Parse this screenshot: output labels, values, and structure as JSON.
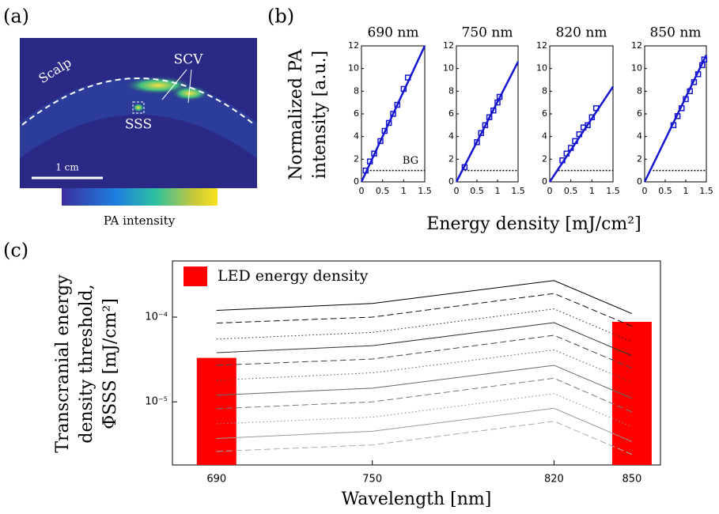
{
  "panel_labels": [
    "(a)",
    "(b)",
    "(c)"
  ],
  "image": {
    "scalp": "Scalp",
    "scv": "SCV",
    "sss": "SSS",
    "scale_bar": "1 cm",
    "colorbar_label": "PA intensity"
  },
  "panel_b": {
    "y_label": [
      "Normalized PA",
      "intensity [a.u.]"
    ],
    "x_label": "Energy density [mJ/cm²]",
    "bg_label": "BG"
  },
  "chart_data": [
    {
      "type": "scatter",
      "title": "690 nm",
      "x": [
        0.1,
        0.2,
        0.3,
        0.45,
        0.55,
        0.65,
        0.75,
        0.85,
        1.0,
        1.1
      ],
      "values": [
        1,
        1.8,
        2.5,
        3.6,
        4.5,
        5.2,
        6,
        6.8,
        8.2,
        9.2
      ],
      "color": "#1515d0",
      "fit": {
        "x": [
          0,
          1.5
        ],
        "values": [
          0,
          12
        ]
      },
      "bg": 1,
      "xlim": [
        0,
        1.5
      ],
      "ylim": [
        0,
        12
      ],
      "xticks": [
        0,
        0.5,
        1,
        1.5
      ],
      "yticks": [
        0,
        2,
        4,
        6,
        8,
        10,
        12
      ]
    },
    {
      "type": "scatter",
      "title": "750 nm",
      "x": [
        0.2,
        0.5,
        0.6,
        0.7,
        0.8,
        0.9,
        1.0,
        1.05
      ],
      "values": [
        1.3,
        3.5,
        4.3,
        5,
        5.7,
        6.3,
        7,
        7.5
      ],
      "color": "#1515d0",
      "fit": {
        "x": [
          0,
          1.5
        ],
        "values": [
          0,
          10.6
        ]
      },
      "bg": 1,
      "xlim": [
        0,
        1.5
      ],
      "ylim": [
        0,
        12
      ],
      "xticks": [
        0,
        0.5,
        1,
        1.5
      ],
      "yticks": [
        0,
        2,
        4,
        6,
        8,
        10,
        12
      ]
    },
    {
      "type": "scatter",
      "title": "820 nm",
      "x": [
        0.3,
        0.4,
        0.5,
        0.6,
        0.7,
        0.8,
        0.9,
        1.0,
        1.1
      ],
      "values": [
        1.9,
        2.5,
        3,
        3.6,
        4.2,
        4.8,
        5,
        5.7,
        6.5
      ],
      "color": "#1515d0",
      "fit": {
        "x": [
          0,
          1.5
        ],
        "values": [
          0,
          8.4
        ]
      },
      "bg": 1,
      "xlim": [
        0,
        1.5
      ],
      "ylim": [
        0,
        12
      ],
      "xticks": [
        0,
        0.5,
        1,
        1.5
      ],
      "yticks": [
        0,
        2,
        4,
        6,
        8,
        10,
        12
      ]
    },
    {
      "type": "scatter",
      "title": "850 nm",
      "x": [
        0.7,
        0.8,
        0.9,
        1.0,
        1.1,
        1.2,
        1.3,
        1.4,
        1.45
      ],
      "values": [
        5,
        5.8,
        6.5,
        7.3,
        8,
        8.8,
        9.5,
        10.3,
        10.8
      ],
      "color": "#1515d0",
      "fit": {
        "x": [
          0,
          1.5
        ],
        "values": [
          0,
          11.2
        ]
      },
      "bg": 1,
      "xlim": [
        0,
        1.5
      ],
      "ylim": [
        0,
        12
      ],
      "xticks": [
        0,
        0.5,
        1,
        1.5
      ],
      "yticks": [
        0,
        2,
        4,
        6,
        8,
        10,
        12
      ]
    },
    {
      "type": "combo",
      "y_label": [
        "Transcranial energy",
        "density threshold,",
        "Φ̄SSS [mJ/cm²]"
      ],
      "x_label": "Wavelength [nm]",
      "yscale": "log",
      "legend": "upper left",
      "x": [
        690,
        750,
        820,
        850
      ],
      "xlim": [
        673,
        861
      ],
      "xticks": [
        690,
        750,
        820,
        850
      ],
      "ylim": [
        1.8e-06,
        0.00046
      ],
      "yticks": [
        {
          "value": 1e-05,
          "label": "10⁻⁵"
        },
        {
          "value": 0.0001,
          "label": "10⁻⁴"
        }
      ],
      "bars": {
        "name": "LED energy density",
        "color": "#ff0000",
        "values": [
          3.3e-05,
          null,
          null,
          8.8e-05
        ]
      },
      "series": [
        {
          "color": "#000000",
          "dash": "solid",
          "values": [
            0.00012,
            0.000145,
            0.00027,
            0.00011
          ]
        },
        {
          "color": "#111111",
          "dash": "dashed",
          "values": [
            8.5e-05,
            0.0001,
            0.00019,
            7.8e-05
          ]
        },
        {
          "color": "#222222",
          "dash": "dotted",
          "values": [
            5.5e-05,
            6.6e-05,
            0.000125,
            5.1e-05
          ]
        },
        {
          "color": "#333333",
          "dash": "solid",
          "values": [
            3.8e-05,
            4.6e-05,
            8.6e-05,
            3.5e-05
          ]
        },
        {
          "color": "#444444",
          "dash": "dashed",
          "values": [
            2.7e-05,
            3.2e-05,
            6.1e-05,
            2.5e-05
          ]
        },
        {
          "color": "#555555",
          "dash": "dotted",
          "values": [
            1.8e-05,
            2.2e-05,
            4.1e-05,
            1.7e-05
          ]
        },
        {
          "color": "#666666",
          "dash": "solid",
          "values": [
            1.2e-05,
            1.45e-05,
            2.7e-05,
            1.1e-05
          ]
        },
        {
          "color": "#777777",
          "dash": "dashed",
          "values": [
            8.3e-06,
            1e-05,
            1.9e-05,
            7.6e-06
          ]
        },
        {
          "color": "#888888",
          "dash": "dotted",
          "values": [
            5.5e-06,
            6.6e-06,
            1.25e-05,
            5.1e-06
          ]
        },
        {
          "color": "#999999",
          "dash": "solid",
          "values": [
            3.7e-06,
            4.5e-06,
            8.4e-06,
            3.4e-06
          ]
        },
        {
          "color": "#aaaaaa",
          "dash": "dashed",
          "values": [
            2.6e-06,
            3.1e-06,
            5.9e-06,
            2.4e-06
          ]
        }
      ]
    }
  ]
}
